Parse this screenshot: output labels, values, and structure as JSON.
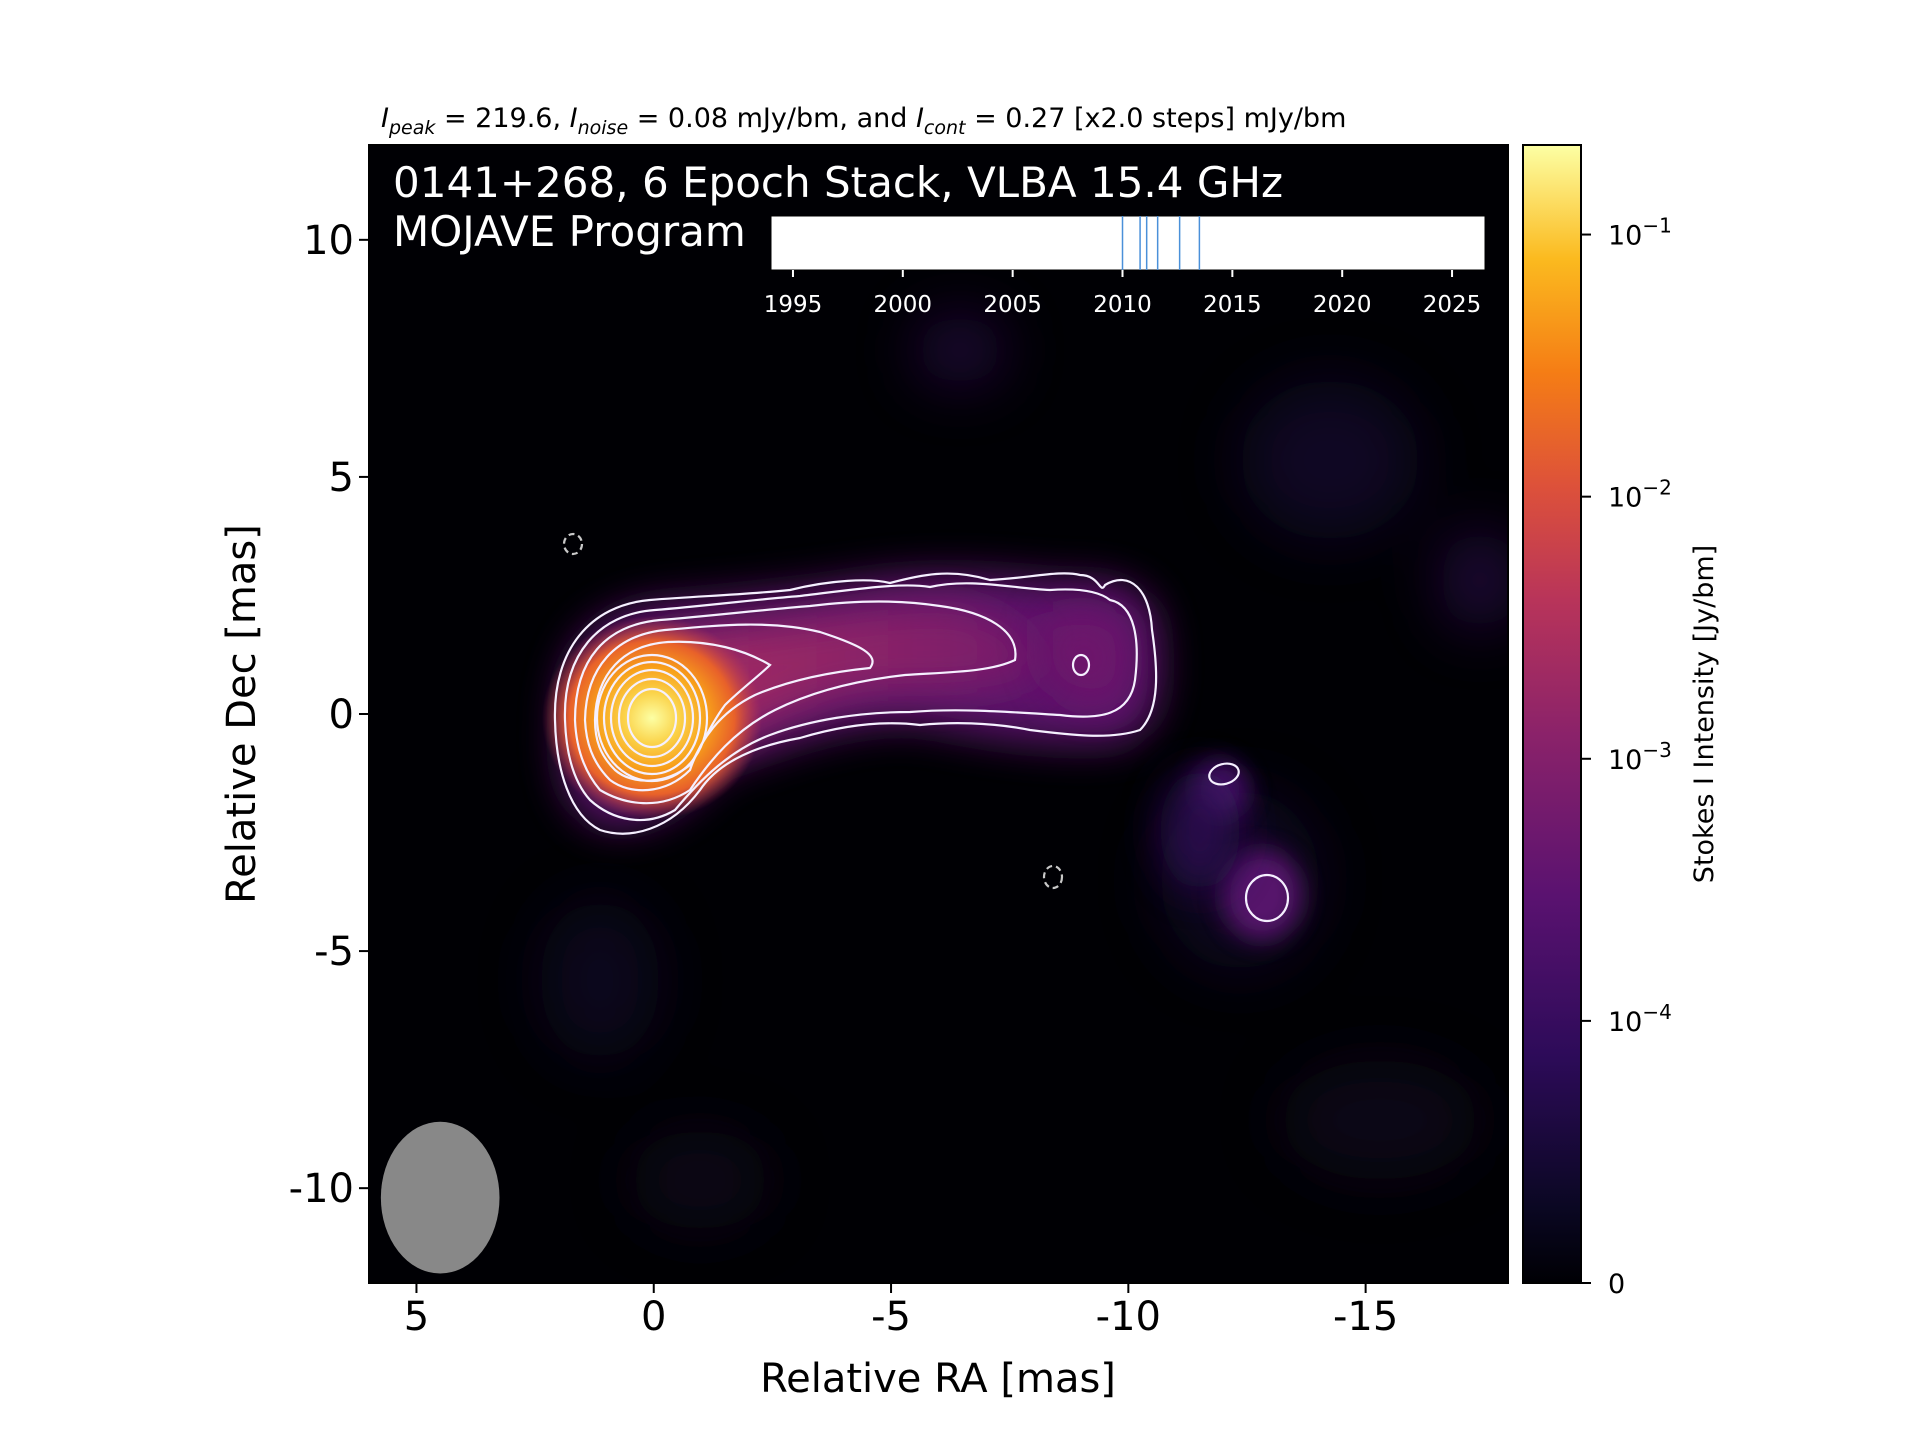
{
  "chart_data": {
    "type": "heatmap",
    "header": {
      "peak_sym": "I",
      "peak_sub": "peak",
      "peak_text": " = 219.6, ",
      "noise_sym": "I",
      "noise_sub": "noise",
      "noise_text": " = 0.08 mJy/bm, and ",
      "cont_sym": "I",
      "cont_sub": "cont",
      "cont_text": " = 0.27 [x2.0 steps] mJy/bm"
    },
    "title": "0141+268, 6 Epoch Stack, VLBA 15.4 GHz",
    "subtitle": "MOJAVE Program",
    "xlabel": "Relative RA [mas]",
    "ylabel": "Relative Dec [mas]",
    "xlim": [
      6,
      -18
    ],
    "ylim": [
      -12,
      12
    ],
    "x_ticks": [
      5,
      0,
      -5,
      -10,
      -15
    ],
    "x_tick_labels": [
      "5",
      "0",
      "-5",
      "-10",
      "-15"
    ],
    "y_ticks": [
      10,
      5,
      0,
      -5,
      -10
    ],
    "y_tick_labels": [
      "10",
      "5",
      "0",
      "-5",
      "-10"
    ],
    "colorbar": {
      "label": "Stokes I Intensity [Jy/bm]",
      "scale": "symlog",
      "colormap": "inferno",
      "range": [
        0,
        0.2196
      ],
      "ticks": [
        {
          "value": 0.1,
          "base": "10",
          "exp": "−1"
        },
        {
          "value": 0.01,
          "base": "10",
          "exp": "−2"
        },
        {
          "value": 0.001,
          "base": "10",
          "exp": "−3"
        },
        {
          "value": 0.0001,
          "base": "10",
          "exp": "−4"
        },
        {
          "value": 0,
          "base": "0",
          "exp": ""
        }
      ]
    },
    "timeline": {
      "xlim": [
        1994,
        2026.5
      ],
      "ticks": [
        1995,
        2000,
        2005,
        2010,
        2015,
        2020,
        2025
      ],
      "tick_labels": [
        "1995",
        "2000",
        "2005",
        "2010",
        "2015",
        "2020",
        "2025"
      ],
      "epochs": [
        2010.0,
        2010.8,
        2011.1,
        2011.6,
        2012.6,
        2013.5
      ],
      "line_color": "#4a90d9"
    },
    "beam": {
      "major_mas": 1.6,
      "minor_mas": 1.25,
      "pa_deg": 0,
      "center": [
        4.5,
        -10.2
      ],
      "color": "#888888"
    },
    "contour_color": "#f5f0ff",
    "background": "#000004"
  }
}
